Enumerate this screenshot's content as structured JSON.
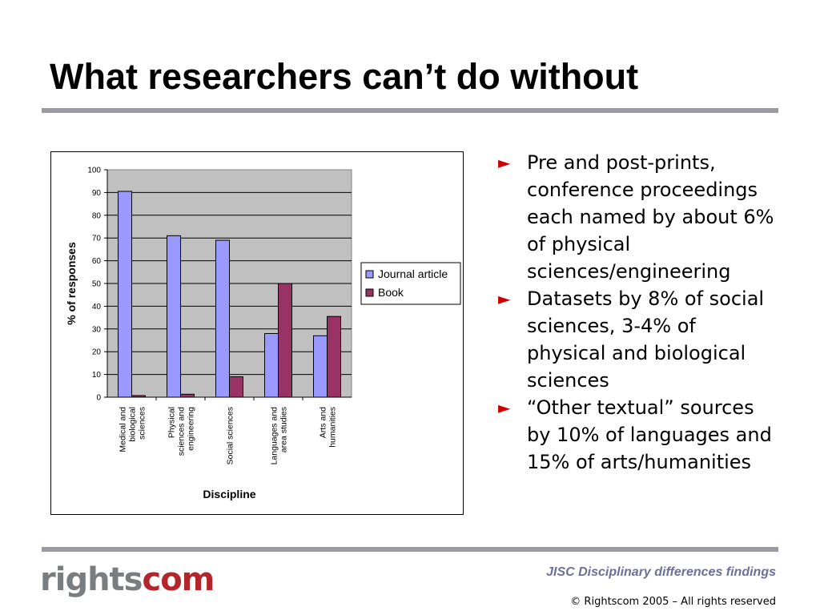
{
  "slide": {
    "title": "What researchers can’t do without"
  },
  "bullets": [
    {
      "marker": "►",
      "text": "Pre and post-prints, conference proceedings each named by about 6% of physical sciences/engineering"
    },
    {
      "marker": "►",
      "text": "Datasets by 8% of social sciences, 3-4% of physical and biological sciences"
    },
    {
      "marker": "►",
      "text": "“Other textual” sources by 10% of languages and 15% of arts/humanities"
    }
  ],
  "footer": {
    "logo_part1": "rights",
    "logo_part2": "com",
    "caption": "JISC Disciplinary differences findings",
    "copyright": "© Rightscom 2005 – All rights reserved"
  },
  "colors": {
    "journal": "#9999ff",
    "book": "#993366",
    "plot_bg": "#c0c0c0",
    "rule": "#9a9aa4",
    "bullet_marker": "#cc0000",
    "caption": "#6b6f9a"
  },
  "chart_data": {
    "type": "bar",
    "title": "",
    "xlabel": "Discipline",
    "ylabel": "% of responses",
    "ylim": [
      0,
      100
    ],
    "yticks": [
      0,
      10,
      20,
      30,
      40,
      50,
      60,
      70,
      80,
      90,
      100
    ],
    "grid": true,
    "legend_position": "right",
    "categories": [
      [
        "Medical and",
        "biological",
        "sciences"
      ],
      [
        "Physical",
        "sciences and",
        "engineering"
      ],
      [
        "Social sciences"
      ],
      [
        "Languages and",
        "area studies"
      ],
      [
        "Arts and",
        "humanities"
      ]
    ],
    "series": [
      {
        "name": "Journal article",
        "values": [
          90.5,
          71,
          69,
          28,
          27
        ]
      },
      {
        "name": "Book",
        "values": [
          0.7,
          1.3,
          9,
          50,
          35.5
        ]
      }
    ]
  }
}
